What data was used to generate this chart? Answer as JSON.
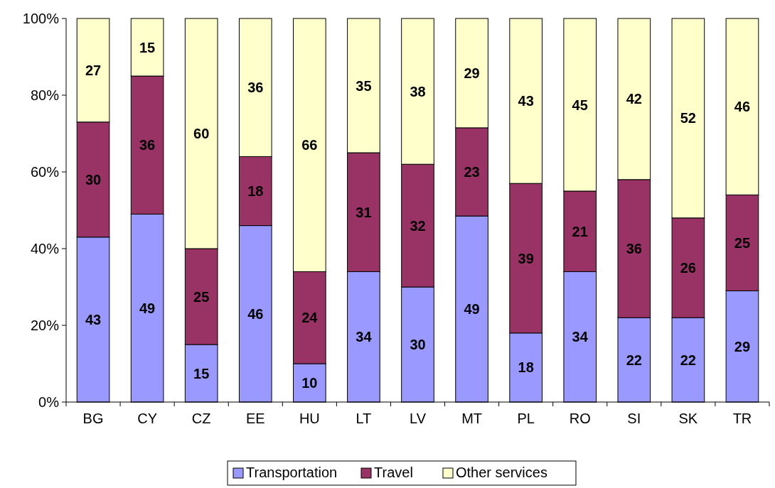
{
  "chart_data": {
    "type": "bar",
    "stacked": true,
    "categories": [
      "BG",
      "CY",
      "CZ",
      "EE",
      "HU",
      "LT",
      "LV",
      "MT",
      "PL",
      "RO",
      "SI",
      "SK",
      "TR"
    ],
    "series": [
      {
        "name": "Transportation",
        "color": "#9999ff",
        "values": [
          43,
          49,
          15,
          46,
          10,
          34,
          30,
          48.5,
          18,
          34,
          22,
          22,
          29
        ],
        "value_labels": [
          "43",
          "49",
          "15",
          "46",
          "10",
          "34",
          "30",
          "49",
          "18",
          "34",
          "22",
          "22",
          "29"
        ]
      },
      {
        "name": "Travel",
        "color": "#993366",
        "values": [
          30,
          36,
          25,
          18,
          24,
          31,
          32,
          23,
          39,
          21,
          36,
          26,
          25
        ],
        "value_labels": [
          "30",
          "36",
          "25",
          "18",
          "24",
          "31",
          "32",
          "23",
          "39",
          "21",
          "36",
          "26",
          "25"
        ]
      },
      {
        "name": "Other services",
        "color": "#ffffcc",
        "values": [
          27,
          15,
          60,
          36,
          66,
          35,
          38,
          28.5,
          43,
          45,
          42,
          52,
          46
        ],
        "value_labels": [
          "27",
          "15",
          "60",
          "36",
          "66",
          "35",
          "38",
          "29",
          "43",
          "45",
          "42",
          "52",
          "46"
        ]
      }
    ],
    "ylim": [
      0,
      100
    ],
    "yticks": [
      {
        "value": 0,
        "label": "0%"
      },
      {
        "value": 20,
        "label": "20%"
      },
      {
        "value": 40,
        "label": "40%"
      },
      {
        "value": 60,
        "label": "60%"
      },
      {
        "value": 80,
        "label": "80%"
      },
      {
        "value": 100,
        "label": "100%"
      }
    ],
    "grid": false,
    "legend": "bottom"
  }
}
